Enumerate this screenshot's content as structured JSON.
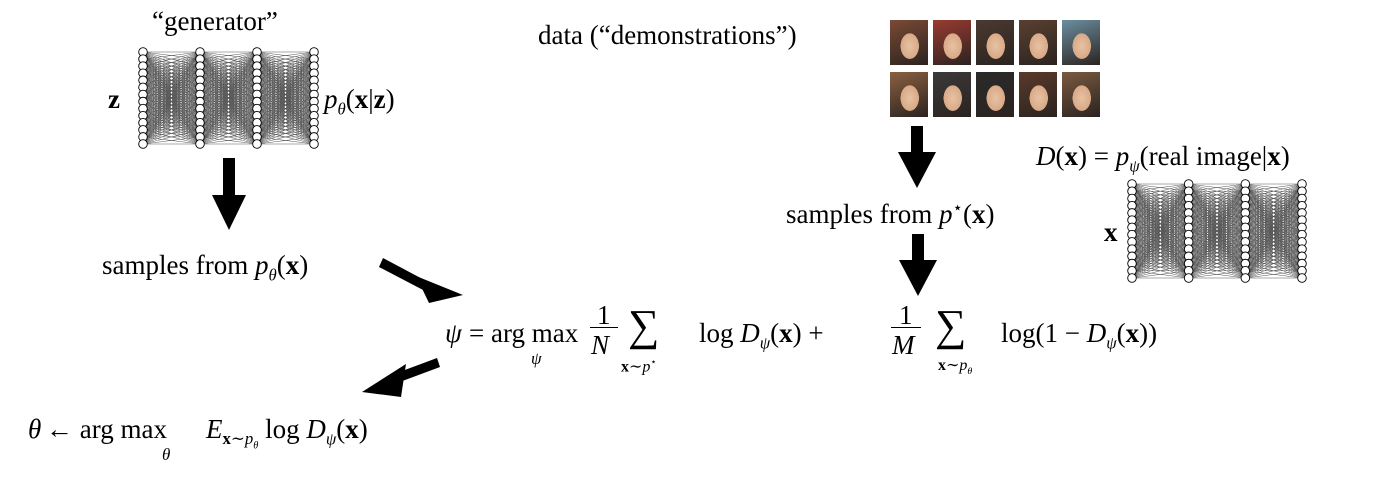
{
  "generator": {
    "label": "“generator”",
    "input_label": "z",
    "output_label": "p_θ(x|z)"
  },
  "data_label": "data (“demonstrations”)",
  "faces": {
    "count": 10,
    "colors": [
      "#7a4a35",
      "#9b3b30",
      "#4a3a30",
      "#5a4030",
      "#6b8fa0",
      "#8a6040",
      "#3a3a3a",
      "#2a2a2a",
      "#5a3a2a",
      "#7a5a40"
    ]
  },
  "discriminator": {
    "equation": "D(x) = p_ψ(real image|x)",
    "input_label": "x"
  },
  "samples_model": "samples from p_θ(x)",
  "samples_data": "samples from p*(x)",
  "objective": "ψ = arg max_ψ 1/N Σ_{x∼p*} log D_ψ(x) + 1/M Σ_{x∼p_θ} log(1 − D_ψ(x))",
  "update": "θ ← arg max_θ E_{x∼p_θ} log D_ψ(x)"
}
